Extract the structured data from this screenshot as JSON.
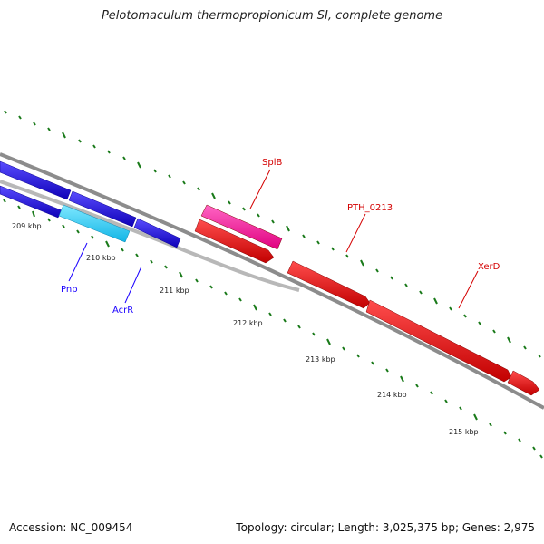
{
  "title": "Pelotomaculum thermopropionicum SI, complete genome",
  "footer": {
    "accession": "Accession: NC_009454",
    "summary": "Topology: circular; Length: 3,025,375 bp; Genes: 2,975"
  },
  "ticks": [
    "209 kbp",
    "210 kbp",
    "211 kbp",
    "212 kbp",
    "213 kbp",
    "214 kbp",
    "215 kbp"
  ],
  "genes": [
    {
      "label": "Pnp",
      "color": "#1a00ff"
    },
    {
      "label": "AcrR",
      "color": "#1a00ff"
    },
    {
      "label": "SplB",
      "color": "#d40000"
    },
    {
      "label": "PTH_0213",
      "color": "#d40000"
    },
    {
      "label": "XerD",
      "color": "#d40000"
    }
  ],
  "colors": {
    "backbone": "#8c8c8c",
    "tick": "#1a7a1a",
    "blue_gene": "#1400e6",
    "cyan_gene": "#2ad4ff",
    "red_gene": "#e60000",
    "pink_gene": "#ff1aa3"
  }
}
